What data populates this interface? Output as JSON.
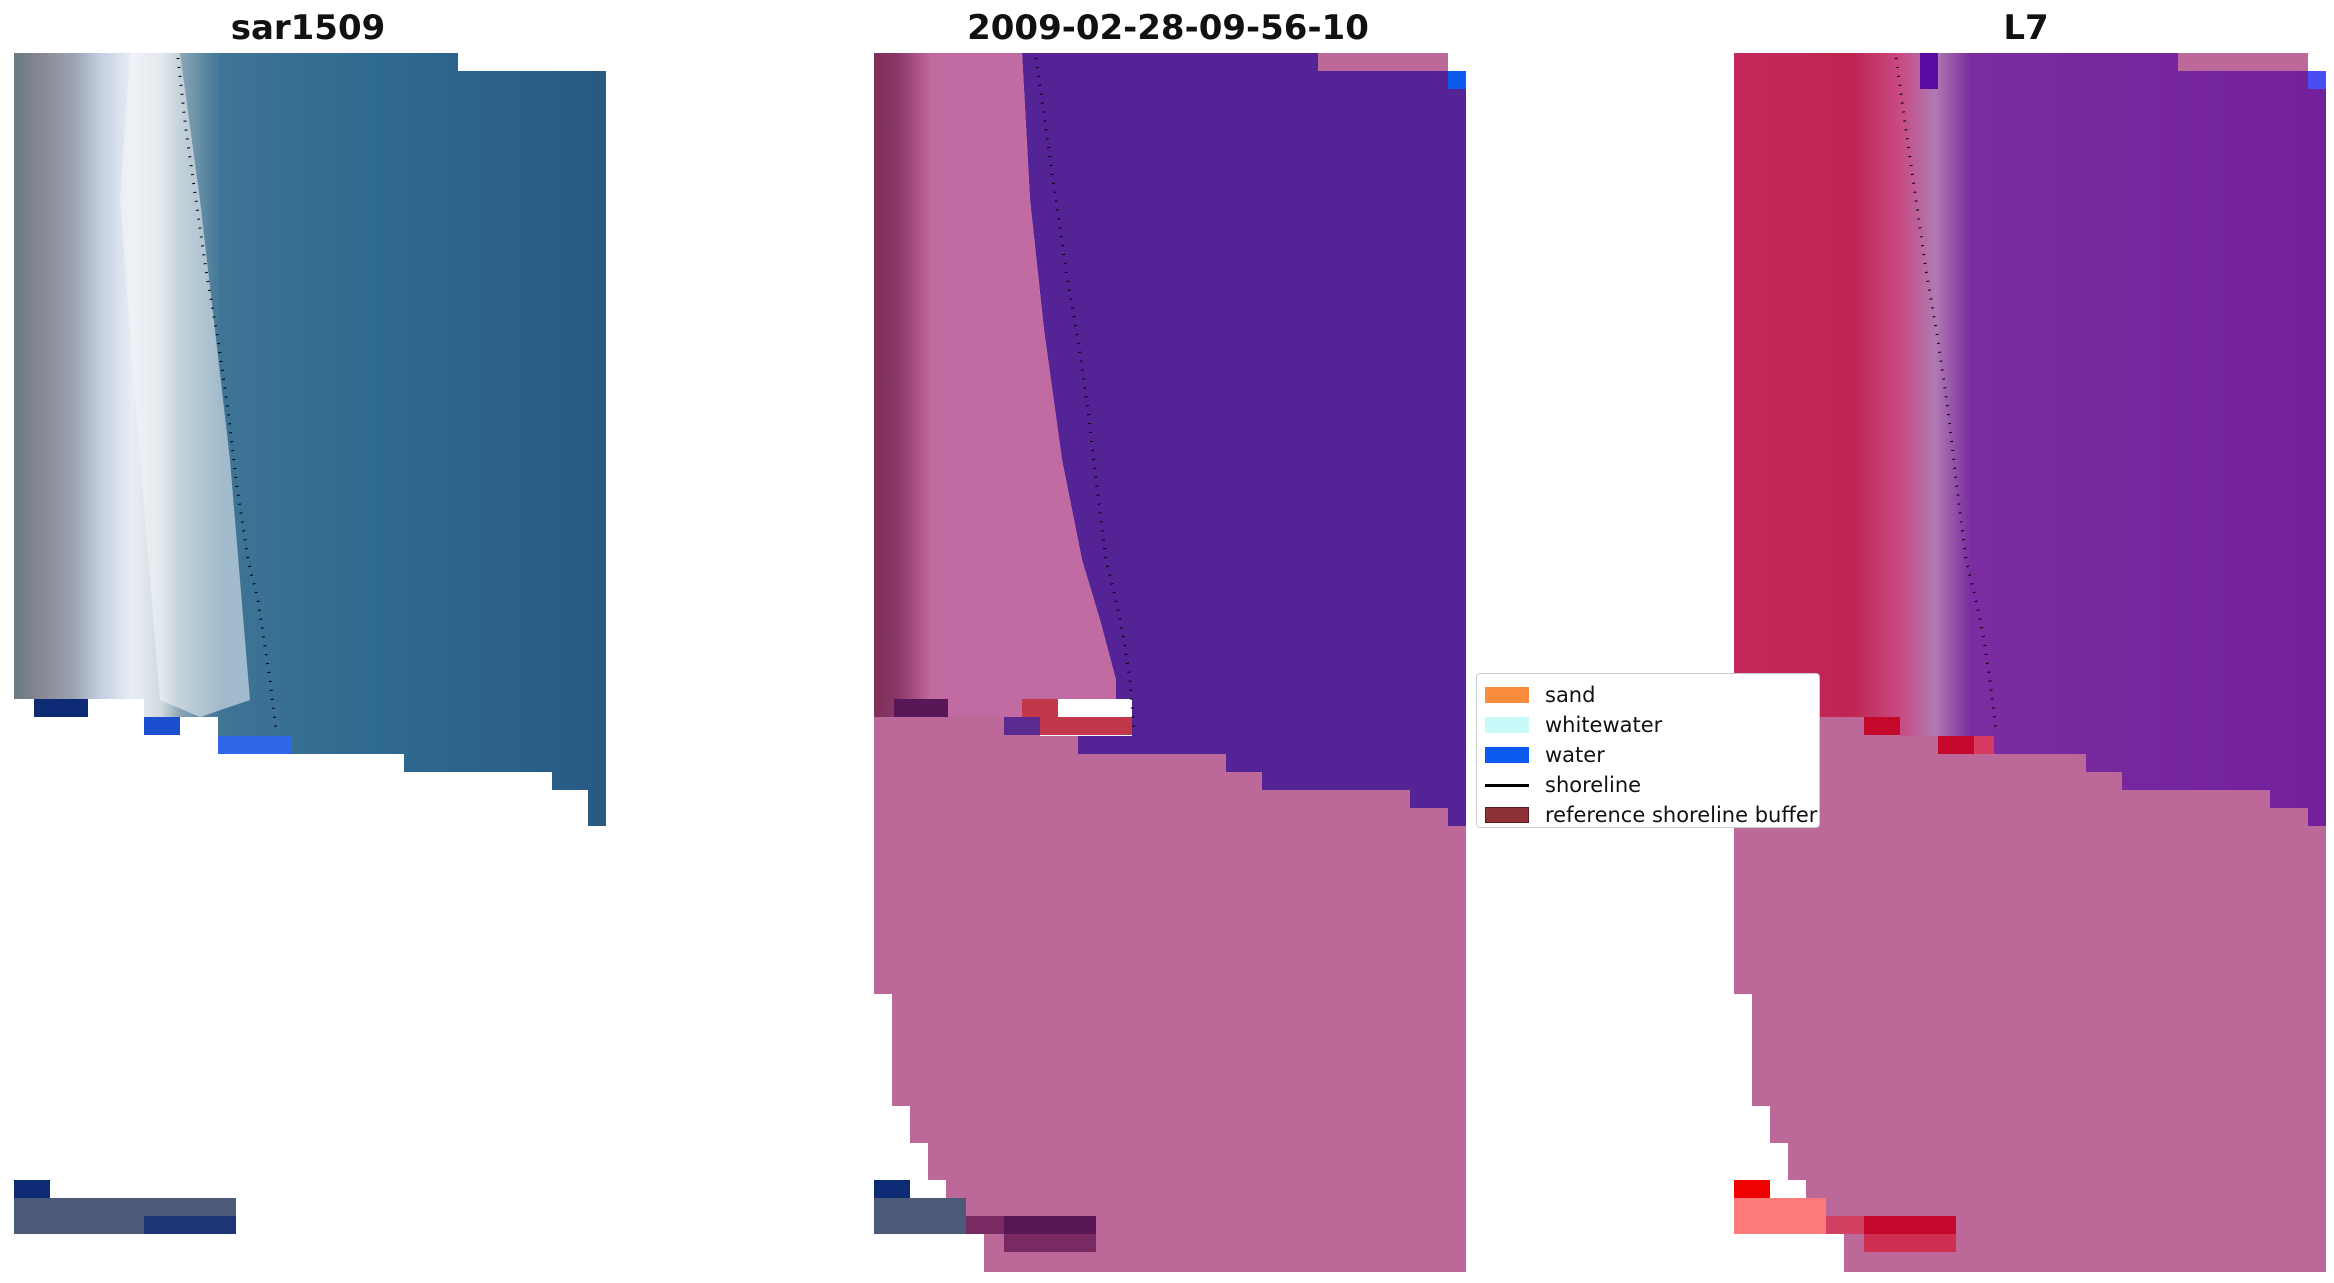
{
  "panels": [
    {
      "title": "sar1509"
    },
    {
      "title": "2009-02-28-09-56-10"
    },
    {
      "title": "L7"
    }
  ],
  "legend": {
    "items": [
      {
        "label": "sand",
        "color": "#f98c3d",
        "kind": "patch"
      },
      {
        "label": "whitewater",
        "color": "#c8fafa",
        "kind": "patch"
      },
      {
        "label": "water",
        "color": "#0c5bee",
        "kind": "patch"
      },
      {
        "label": "shoreline",
        "color": "#000000",
        "kind": "line"
      },
      {
        "label": "reference shoreline buffer",
        "color": "#8e3237",
        "kind": "patch"
      }
    ]
  }
}
